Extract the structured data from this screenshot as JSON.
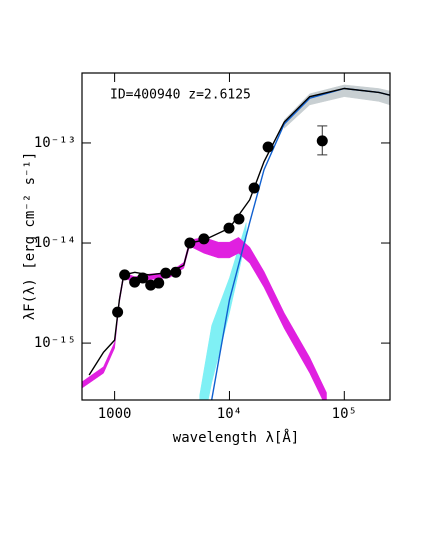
{
  "chart_data": {
    "type": "scatter",
    "annotation": "ID=400940 z=2.6125",
    "x_label": "wavelength λ[Å]",
    "y_label": "λF(λ) [erg cm⁻² s⁻¹]",
    "xlog": true,
    "ylog": true,
    "xlim": [
      520,
      250000
    ],
    "ylim": [
      2.7e-16,
      5e-13
    ],
    "xticks": [
      1000,
      {
        "value": 10000,
        "label": "10⁴"
      },
      {
        "value": 100000,
        "label": "10⁵"
      }
    ],
    "yticks": [
      {
        "value": 1e-15,
        "label": "10⁻¹⁵"
      },
      {
        "value": 1e-14,
        "label": "10⁻¹⁴"
      },
      {
        "value": 1e-13,
        "label": "10⁻¹³"
      }
    ],
    "bands": [
      {
        "color": "#c8cfd2",
        "x": [
          30000,
          50000,
          100000,
          200000,
          250000
        ],
        "lower": [
          1.4e-13,
          2.4e-13,
          2.9e-13,
          2.6e-13,
          2.4e-13
        ],
        "upper": [
          1.7e-13,
          3.1e-13,
          3.8e-13,
          3.5e-13,
          3.3e-13
        ]
      },
      {
        "color": "#7ff0f5",
        "x": [
          5500,
          7000,
          10000,
          14000
        ],
        "lower": [
          1e-16,
          4e-16,
          2e-15,
          1.1e-14
        ],
        "upper": [
          3e-16,
          1.5e-15,
          4.5e-15,
          1.6e-14
        ]
      },
      {
        "color": "#e020e0",
        "x": [
          520,
          800,
          1000,
          1100,
          1200,
          1500,
          2000,
          3000,
          4000,
          4500,
          6000,
          8000,
          10000,
          12000,
          15000,
          20000,
          30000,
          50000,
          70000
        ],
        "lower": [
          3.55e-16,
          5e-16,
          8.9e-16,
          2.5e-15,
          4.5e-15,
          4e-15,
          4.3e-15,
          4.5e-15,
          5.6e-15,
          9.3e-15,
          7.9e-15,
          7.1e-15,
          7.1e-15,
          7.9e-15,
          6.3e-15,
          3.6e-15,
          1.4e-15,
          5e-16,
          2.25e-16
        ],
        "upper": [
          4.1e-16,
          5.8e-16,
          1.02e-15,
          2.9e-15,
          5.1e-15,
          4.6e-15,
          4.9e-15,
          5.1e-15,
          6.4e-15,
          1.07e-14,
          1.14e-14,
          1.02e-14,
          1.02e-14,
          1.14e-14,
          9.1e-15,
          5.2e-15,
          2e-15,
          7.2e-16,
          3.2e-16
        ]
      }
    ],
    "lines": [
      {
        "color": "#1060d0",
        "x": [
          7000,
          10000,
          15000,
          20000,
          30000,
          50000,
          100000,
          200000,
          250000
        ],
        "values": [
          2.7e-16,
          2.7e-15,
          1.6e-14,
          5.4e-14,
          1.55e-13,
          2.8e-13,
          3.5e-13,
          3.2e-13,
          3e-13
        ]
      },
      {
        "color": "#000000",
        "x": [
          600,
          800,
          1000,
          1100,
          1200,
          1500,
          2000,
          3000,
          4000,
          4500,
          6000,
          10000,
          15000,
          20000,
          30000,
          50000,
          100000,
          200000,
          250000
        ],
        "values": [
          4.8e-16,
          8.1e-16,
          1.07e-15,
          2.7e-15,
          4.8e-15,
          5.1e-15,
          4.8e-15,
          5.1e-15,
          6e-15,
          1e-14,
          1.07e-14,
          1.41e-14,
          2.7e-14,
          6.5e-14,
          1.62e-13,
          2.9e-13,
          3.5e-13,
          3.2e-13,
          3e-13
        ]
      }
    ],
    "points": {
      "color": "#000000",
      "x": [
        1062,
        1223,
        1495,
        1758,
        2061,
        2421,
        2787,
        3410,
        4520,
        5990,
        9910,
        12100,
        16400,
        21700,
        64300
      ],
      "values": [
        2.04e-15,
        4.8e-15,
        4.07e-15,
        4.47e-15,
        3.8e-15,
        3.98e-15,
        5e-15,
        5.1e-15,
        1e-14,
        1.1e-14,
        1.41e-14,
        1.74e-14,
        3.55e-14,
        9.1e-14,
        1.05e-13
      ],
      "error_low": [
        null,
        null,
        null,
        null,
        null,
        null,
        null,
        null,
        null,
        null,
        null,
        null,
        null,
        null,
        7.6e-14
      ],
      "error_high": [
        null,
        null,
        null,
        null,
        null,
        null,
        null,
        null,
        null,
        null,
        null,
        null,
        null,
        null,
        1.48e-13
      ]
    }
  }
}
